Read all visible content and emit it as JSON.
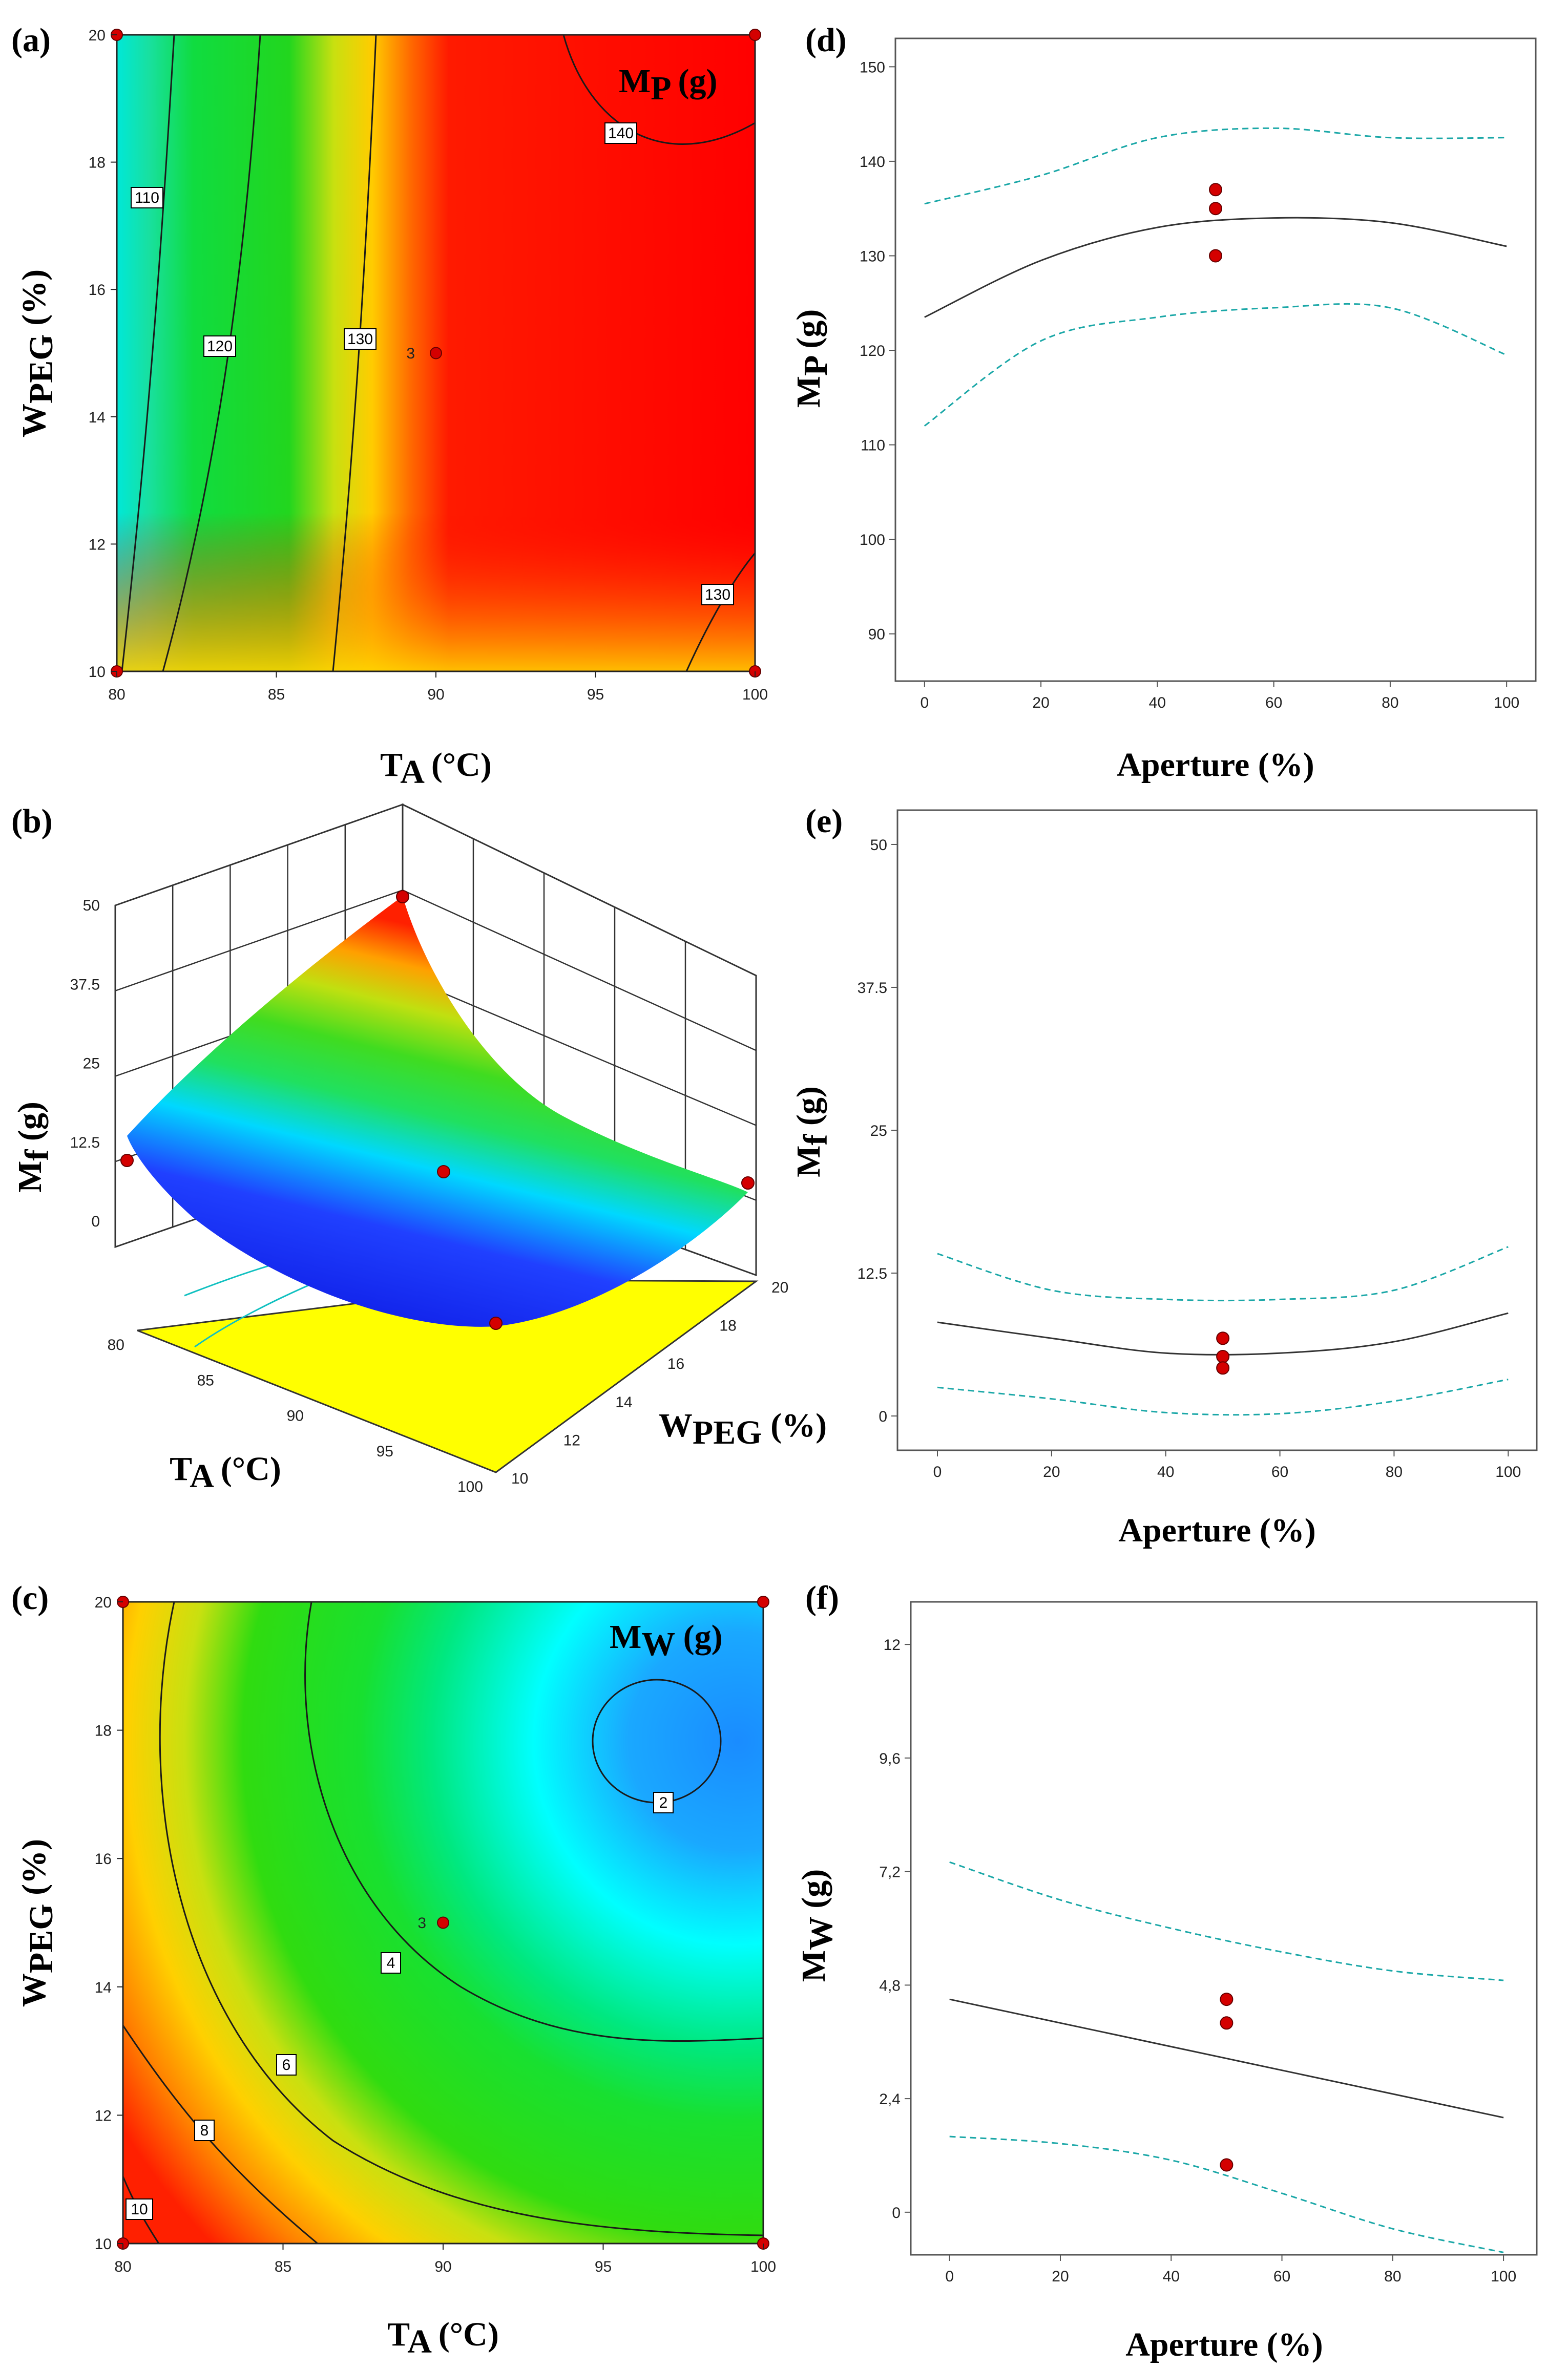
{
  "figure": {
    "colors": {
      "point": "#d40000",
      "fit": "#333333",
      "ci": "#1aa7a7"
    }
  },
  "chart_data": [
    {
      "id": "a",
      "panel_label": "(a)",
      "type": "contour",
      "title": "Mp (g)",
      "title_main": "M",
      "title_sub": "P",
      "title_unit": " (g)",
      "xlabel": "TA (°C)",
      "xlabel_main": "T",
      "xlabel_sub": "A",
      "xlabel_unit": " (°C)",
      "ylabel": "WPEG (%)",
      "ylabel_main": "W",
      "ylabel_sub": "PEG",
      "ylabel_unit": " (%)",
      "xlim": [
        80,
        100
      ],
      "ylim": [
        10,
        20
      ],
      "xticks": [
        "80",
        "85",
        "90",
        "95",
        "100"
      ],
      "yticks": [
        "10",
        "12",
        "14",
        "16",
        "18",
        "20"
      ],
      "contour_labels": [
        "110",
        "120",
        "130",
        "140",
        "130"
      ],
      "points": [
        {
          "x": 80,
          "y": 10
        },
        {
          "x": 80,
          "y": 20
        },
        {
          "x": 100,
          "y": 10
        },
        {
          "x": 100,
          "y": 20
        },
        {
          "x": 90,
          "y": 15
        }
      ],
      "center_label": "3"
    },
    {
      "id": "b",
      "panel_label": "(b)",
      "type": "surface3d",
      "zlabel": "Mf (g)",
      "zlabel_main": "M",
      "zlabel_sub": "f",
      "zlabel_unit": " (g)",
      "xlabel": "TA (°C)",
      "xlabel_main": "T",
      "xlabel_sub": "A",
      "xlabel_unit": " (°C)",
      "ylabel": "WPEG (%)",
      "ylabel_main": "W",
      "ylabel_sub": "PEG",
      "ylabel_unit": " (%)",
      "zticks": [
        "0",
        "12.5",
        "25",
        "37.5",
        "50"
      ],
      "xticks": [
        "80",
        "85",
        "90",
        "95",
        "100"
      ],
      "yticks": [
        "10",
        "12",
        "14",
        "16",
        "18",
        "20"
      ],
      "xlim": [
        80,
        100
      ],
      "ylim": [
        10,
        20
      ],
      "zlim": [
        0,
        50
      ],
      "corner_values": {
        "T80_W10": 13,
        "T80_W20": 50,
        "T100_W10": 5,
        "T100_W20": 10,
        "center": 8
      }
    },
    {
      "id": "c",
      "panel_label": "(c)",
      "type": "contour",
      "title": "Mw (g)",
      "title_main": "M",
      "title_sub": "W",
      "title_unit": " (g)",
      "xlabel": "TA (°C)",
      "xlabel_main": "T",
      "xlabel_sub": "A",
      "xlabel_unit": " (°C)",
      "ylabel": "WPEG (%)",
      "ylabel_main": "W",
      "ylabel_sub": "PEG",
      "ylabel_unit": " (%)",
      "xlim": [
        80,
        100
      ],
      "ylim": [
        10,
        20
      ],
      "xticks": [
        "80",
        "85",
        "90",
        "95",
        "100"
      ],
      "yticks": [
        "10",
        "12",
        "14",
        "16",
        "18",
        "20"
      ],
      "contour_labels": [
        "2",
        "4",
        "6",
        "8",
        "10"
      ],
      "points": [
        {
          "x": 80,
          "y": 10
        },
        {
          "x": 80,
          "y": 20
        },
        {
          "x": 100,
          "y": 10
        },
        {
          "x": 100,
          "y": 20
        },
        {
          "x": 90,
          "y": 15
        }
      ],
      "center_label": "3"
    },
    {
      "id": "d",
      "panel_label": "(d)",
      "type": "line",
      "xlabel": "Aperture (%)",
      "ylabel": "Mp (g)",
      "ylabel_main": "M",
      "ylabel_sub": "P",
      "ylabel_unit": " (g)",
      "xlim": [
        -5,
        105
      ],
      "ylim": [
        85,
        153
      ],
      "xticks": [
        "0",
        "20",
        "40",
        "60",
        "80",
        "100"
      ],
      "yticks": [
        "90",
        "100",
        "110",
        "120",
        "130",
        "140",
        "150"
      ],
      "x": [
        0,
        20,
        40,
        60,
        80,
        100
      ],
      "fit": [
        123.5,
        129.5,
        133,
        134,
        133.5,
        131
      ],
      "ci_upper": [
        135.5,
        138.5,
        142.5,
        143.5,
        142.5,
        142.5
      ],
      "ci_lower": [
        112,
        121,
        123.5,
        124.5,
        124.5,
        119.5
      ],
      "points": [
        {
          "x": 50,
          "y": 137
        },
        {
          "x": 50,
          "y": 135
        },
        {
          "x": 50,
          "y": 130
        }
      ]
    },
    {
      "id": "e",
      "panel_label": "(e)",
      "type": "line",
      "xlabel": "Aperture (%)",
      "ylabel": "Mf (g)",
      "ylabel_main": "M",
      "ylabel_sub": "f",
      "ylabel_unit": " (g)",
      "xlim": [
        -7,
        105
      ],
      "ylim": [
        -3,
        53
      ],
      "xticks": [
        "0",
        "20",
        "40",
        "60",
        "80",
        "100"
      ],
      "yticks": [
        "0",
        "12.5",
        "25",
        "37.5",
        "50"
      ],
      "x": [
        0,
        20,
        40,
        60,
        80,
        100
      ],
      "fit": [
        8.2,
        6.8,
        5.5,
        5.5,
        6.5,
        9
      ],
      "ci_upper": [
        14.2,
        11,
        10.2,
        10.2,
        11,
        14.8
      ],
      "ci_lower": [
        2.5,
        1.5,
        0.3,
        0.2,
        1.3,
        3.2
      ],
      "points": [
        {
          "x": 50,
          "y": 6.8
        },
        {
          "x": 50,
          "y": 5.2
        },
        {
          "x": 50,
          "y": 4.2
        }
      ]
    },
    {
      "id": "f",
      "panel_label": "(f)",
      "type": "line",
      "xlabel": "Aperture (%)",
      "ylabel": "Mw (g)",
      "ylabel_main": "M",
      "ylabel_sub": "W",
      "ylabel_unit": " (g)",
      "xlim": [
        -7,
        106
      ],
      "ylim": [
        -0.9,
        12.9
      ],
      "xticks": [
        "0",
        "20",
        "40",
        "60",
        "80",
        "100"
      ],
      "yticks": [
        "0",
        "2,4",
        "4,8",
        "7,2",
        "9,6",
        "12"
      ],
      "x": [
        0,
        20,
        40,
        60,
        80,
        100
      ],
      "fit": [
        4.5,
        4.0,
        3.5,
        3.0,
        2.5,
        2.0
      ],
      "ci_upper": [
        7.4,
        6.6,
        6.0,
        5.5,
        5.1,
        4.9
      ],
      "ci_lower": [
        1.6,
        1.45,
        1.1,
        0.4,
        -0.35,
        -0.85
      ],
      "points": [
        {
          "x": 50,
          "y": 4.5
        },
        {
          "x": 50,
          "y": 4.0
        },
        {
          "x": 50,
          "y": 1.0
        }
      ]
    }
  ]
}
